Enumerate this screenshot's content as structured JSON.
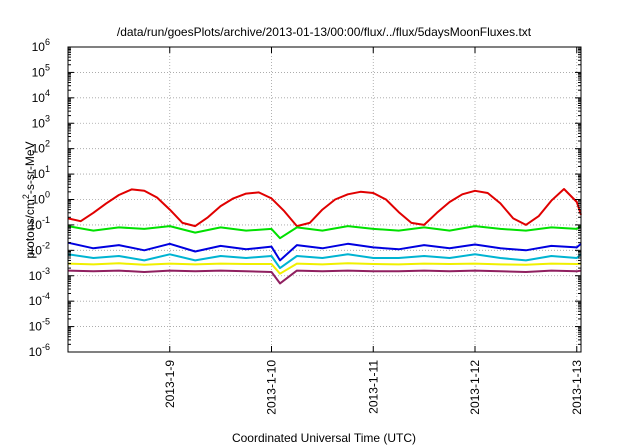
{
  "chart_data": {
    "type": "line",
    "title": "/data/run/goesPlots/archive/2013-01-13/00:00/flux/../flux/5daysMoonFluxes.txt",
    "xlabel": "Coordinated Universal Time (UTC)",
    "ylabel": "protons/cm²-s-sr-MeV",
    "ylabel_parts": {
      "before": "protons/cm",
      "sup": "2",
      "after": "-s-sr-MeV"
    },
    "x_scale": "date",
    "y_scale": "log",
    "xlim": [
      "2013-01-08T00:00",
      "2013-01-13T01:00"
    ],
    "ylim": [
      1e-06,
      1000000.0
    ],
    "grid": true,
    "x_ticks": [
      {
        "label": "2013-1-9",
        "x": "2013-01-09"
      },
      {
        "label": "2013-1-10",
        "x": "2013-01-10"
      },
      {
        "label": "2013-1-11",
        "x": "2013-01-11"
      },
      {
        "label": "2013-1-12",
        "x": "2013-01-12"
      },
      {
        "label": "2013-1-13",
        "x": "2013-01-13"
      }
    ],
    "y_ticks": [
      {
        "base": "10",
        "exp": "-6",
        "value": 1e-06
      },
      {
        "base": "10",
        "exp": "-5",
        "value": 1e-05
      },
      {
        "base": "10",
        "exp": "-4",
        "value": 0.0001
      },
      {
        "base": "10",
        "exp": "-3",
        "value": 0.001
      },
      {
        "base": "10",
        "exp": "-2",
        "value": 0.01
      },
      {
        "base": "10",
        "exp": "-1",
        "value": 0.1
      },
      {
        "base": "10",
        "exp": "0",
        "value": 1
      },
      {
        "base": "10",
        "exp": "1",
        "value": 10
      },
      {
        "base": "10",
        "exp": "2",
        "value": 100
      },
      {
        "base": "10",
        "exp": "3",
        "value": 1000
      },
      {
        "base": "10",
        "exp": "4",
        "value": 10000
      },
      {
        "base": "10",
        "exp": "5",
        "value": 100000
      },
      {
        "base": "10",
        "exp": "6",
        "value": 1000000
      }
    ],
    "series": [
      {
        "color": "#e00000",
        "x": [
          "2013-01-08T00:00",
          "2013-01-08T03:00",
          "2013-01-08T06:00",
          "2013-01-08T09:00",
          "2013-01-08T12:00",
          "2013-01-08T15:00",
          "2013-01-08T18:00",
          "2013-01-08T21:00",
          "2013-01-09T00:00",
          "2013-01-09T03:00",
          "2013-01-09T06:00",
          "2013-01-09T09:00",
          "2013-01-09T12:00",
          "2013-01-09T15:00",
          "2013-01-09T18:00",
          "2013-01-09T21:00",
          "2013-01-10T00:00",
          "2013-01-10T03:00",
          "2013-01-10T06:00",
          "2013-01-10T09:00",
          "2013-01-10T12:00",
          "2013-01-10T15:00",
          "2013-01-10T18:00",
          "2013-01-10T21:00",
          "2013-01-11T00:00",
          "2013-01-11T03:00",
          "2013-01-11T06:00",
          "2013-01-11T09:00",
          "2013-01-11T12:00",
          "2013-01-11T15:00",
          "2013-01-11T18:00",
          "2013-01-11T21:00",
          "2013-01-12T00:00",
          "2013-01-12T03:00",
          "2013-01-12T06:00",
          "2013-01-12T09:00",
          "2013-01-12T12:00",
          "2013-01-12T15:00",
          "2013-01-12T18:00",
          "2013-01-12T21:00",
          "2013-01-13T00:00",
          "2013-01-13T01:00"
        ],
        "y": [
          0.18,
          0.14,
          0.3,
          0.7,
          1.5,
          2.5,
          2.2,
          1.2,
          0.4,
          0.12,
          0.09,
          0.2,
          0.55,
          1.1,
          1.7,
          1.9,
          1.1,
          0.35,
          0.09,
          0.12,
          0.4,
          1.0,
          1.6,
          2.0,
          1.8,
          1.0,
          0.32,
          0.12,
          0.1,
          0.3,
          0.8,
          1.6,
          2.2,
          1.8,
          0.7,
          0.18,
          0.1,
          0.22,
          0.9,
          2.6,
          0.8,
          0.25
        ]
      },
      {
        "color": "#00e000",
        "x": [
          "2013-01-08T00:00",
          "2013-01-08T06:00",
          "2013-01-08T12:00",
          "2013-01-08T18:00",
          "2013-01-09T00:00",
          "2013-01-09T06:00",
          "2013-01-09T12:00",
          "2013-01-09T18:00",
          "2013-01-10T00:00",
          "2013-01-10T02:00",
          "2013-01-10T06:00",
          "2013-01-10T12:00",
          "2013-01-10T18:00",
          "2013-01-11T00:00",
          "2013-01-11T06:00",
          "2013-01-11T12:00",
          "2013-01-11T18:00",
          "2013-01-12T00:00",
          "2013-01-12T06:00",
          "2013-01-12T12:00",
          "2013-01-12T18:00",
          "2013-01-13T00:00",
          "2013-01-13T01:00"
        ],
        "y": [
          0.09,
          0.06,
          0.08,
          0.07,
          0.09,
          0.05,
          0.08,
          0.06,
          0.07,
          0.03,
          0.08,
          0.06,
          0.09,
          0.07,
          0.06,
          0.08,
          0.06,
          0.09,
          0.07,
          0.06,
          0.08,
          0.07,
          0.09
        ]
      },
      {
        "color": "#0000e0",
        "x": [
          "2013-01-08T00:00",
          "2013-01-08T06:00",
          "2013-01-08T12:00",
          "2013-01-08T18:00",
          "2013-01-09T00:00",
          "2013-01-09T06:00",
          "2013-01-09T12:00",
          "2013-01-09T18:00",
          "2013-01-10T00:00",
          "2013-01-10T02:00",
          "2013-01-10T06:00",
          "2013-01-10T12:00",
          "2013-01-10T18:00",
          "2013-01-11T00:00",
          "2013-01-11T06:00",
          "2013-01-11T12:00",
          "2013-01-11T18:00",
          "2013-01-12T00:00",
          "2013-01-12T06:00",
          "2013-01-12T12:00",
          "2013-01-12T18:00",
          "2013-01-13T00:00",
          "2013-01-13T01:00"
        ],
        "y": [
          0.02,
          0.012,
          0.016,
          0.01,
          0.018,
          0.009,
          0.015,
          0.011,
          0.014,
          0.004,
          0.016,
          0.012,
          0.018,
          0.013,
          0.011,
          0.016,
          0.012,
          0.017,
          0.012,
          0.01,
          0.015,
          0.013,
          0.018
        ]
      },
      {
        "color": "#00b4d2",
        "x": [
          "2013-01-08T00:00",
          "2013-01-08T06:00",
          "2013-01-08T12:00",
          "2013-01-08T18:00",
          "2013-01-09T00:00",
          "2013-01-09T06:00",
          "2013-01-09T12:00",
          "2013-01-09T18:00",
          "2013-01-10T00:00",
          "2013-01-10T02:00",
          "2013-01-10T06:00",
          "2013-01-10T12:00",
          "2013-01-10T18:00",
          "2013-01-11T00:00",
          "2013-01-11T06:00",
          "2013-01-11T12:00",
          "2013-01-11T18:00",
          "2013-01-12T00:00",
          "2013-01-12T06:00",
          "2013-01-12T12:00",
          "2013-01-12T18:00",
          "2013-01-13T00:00",
          "2013-01-13T01:00"
        ],
        "y": [
          0.007,
          0.005,
          0.006,
          0.004,
          0.007,
          0.004,
          0.006,
          0.005,
          0.006,
          0.002,
          0.006,
          0.005,
          0.007,
          0.005,
          0.005,
          0.006,
          0.005,
          0.007,
          0.005,
          0.004,
          0.006,
          0.005,
          0.007
        ]
      },
      {
        "color": "#f0f000",
        "x": [
          "2013-01-08T00:00",
          "2013-01-08T06:00",
          "2013-01-08T12:00",
          "2013-01-08T18:00",
          "2013-01-09T00:00",
          "2013-01-09T06:00",
          "2013-01-09T12:00",
          "2013-01-09T18:00",
          "2013-01-10T00:00",
          "2013-01-10T02:00",
          "2013-01-10T06:00",
          "2013-01-10T12:00",
          "2013-01-10T18:00",
          "2013-01-11T00:00",
          "2013-01-11T06:00",
          "2013-01-11T12:00",
          "2013-01-11T18:00",
          "2013-01-12T00:00",
          "2013-01-12T06:00",
          "2013-01-12T12:00",
          "2013-01-12T18:00",
          "2013-01-13T00:00",
          "2013-01-13T01:00"
        ],
        "y": [
          0.003,
          0.0028,
          0.0031,
          0.0027,
          0.003,
          0.0028,
          0.003,
          0.0029,
          0.0029,
          0.0012,
          0.003,
          0.0028,
          0.0031,
          0.0029,
          0.0028,
          0.003,
          0.0029,
          0.003,
          0.0028,
          0.0027,
          0.003,
          0.0029,
          0.003
        ]
      },
      {
        "color": "#902060",
        "x": [
          "2013-01-08T00:00",
          "2013-01-08T06:00",
          "2013-01-08T12:00",
          "2013-01-08T18:00",
          "2013-01-09T00:00",
          "2013-01-09T06:00",
          "2013-01-09T12:00",
          "2013-01-09T18:00",
          "2013-01-10T00:00",
          "2013-01-10T02:00",
          "2013-01-10T06:00",
          "2013-01-10T12:00",
          "2013-01-10T18:00",
          "2013-01-11T00:00",
          "2013-01-11T06:00",
          "2013-01-11T12:00",
          "2013-01-11T18:00",
          "2013-01-12T00:00",
          "2013-01-12T06:00",
          "2013-01-12T12:00",
          "2013-01-12T18:00",
          "2013-01-13T00:00",
          "2013-01-13T01:00"
        ],
        "y": [
          0.0016,
          0.0015,
          0.0016,
          0.0014,
          0.0016,
          0.0015,
          0.0016,
          0.0015,
          0.0014,
          0.0005,
          0.0016,
          0.0015,
          0.0016,
          0.0015,
          0.0015,
          0.0016,
          0.0015,
          0.0016,
          0.0015,
          0.0014,
          0.0016,
          0.0015,
          0.0016
        ]
      }
    ]
  }
}
